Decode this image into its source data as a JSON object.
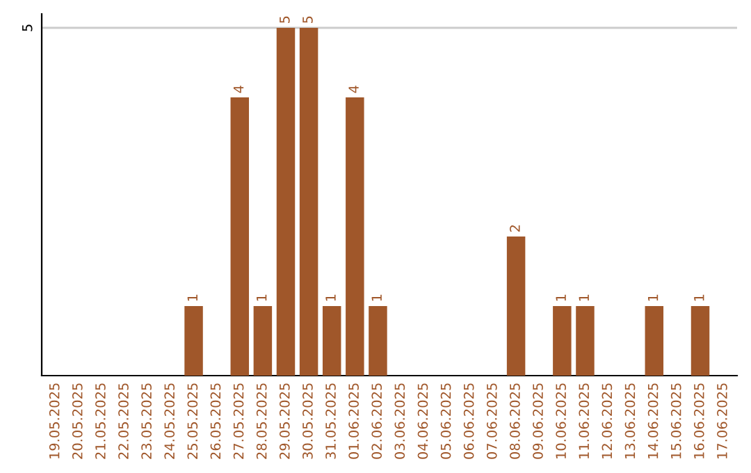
{
  "chart_data": {
    "type": "bar",
    "categories": [
      "19.05.2025",
      "20.05.2025",
      "21.05.2025",
      "22.05.2025",
      "23.05.2025",
      "24.05.2025",
      "25.05.2025",
      "26.05.2025",
      "27.05.2025",
      "28.05.2025",
      "29.05.2025",
      "30.05.2025",
      "31.05.2025",
      "01.06.2025",
      "02.06.2025",
      "03.06.2025",
      "04.06.2025",
      "05.06.2025",
      "06.06.2025",
      "07.06.2025",
      "08.06.2025",
      "09.06.2025",
      "10.06.2025",
      "11.06.2025",
      "12.06.2025",
      "13.06.2025",
      "14.06.2025",
      "15.06.2025",
      "16.06.2025",
      "17.06.2025"
    ],
    "values": [
      0,
      0,
      0,
      0,
      0,
      0,
      1,
      0,
      4,
      1,
      5,
      5,
      1,
      4,
      1,
      0,
      0,
      0,
      0,
      0,
      2,
      0,
      1,
      1,
      0,
      0,
      1,
      0,
      1,
      0
    ],
    "value_labels": [
      null,
      null,
      null,
      null,
      null,
      null,
      "1",
      null,
      "4",
      "1",
      "5",
      "5",
      "1",
      "4",
      "1",
      null,
      null,
      null,
      null,
      null,
      "2",
      null,
      "1",
      "1",
      null,
      null,
      "1",
      null,
      "1",
      null
    ],
    "color": "#a0572a",
    "ylim": [
      0,
      5.2
    ],
    "yticks": [
      5
    ],
    "grid": "y"
  }
}
